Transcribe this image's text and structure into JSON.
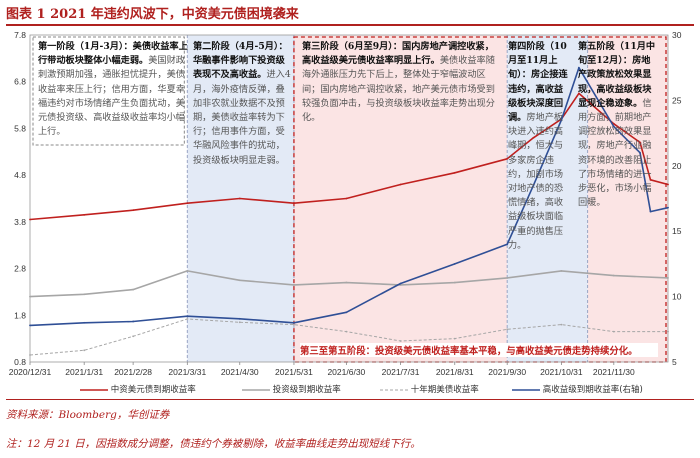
{
  "figure": {
    "title": "图表 1   2021 年违约风波下，中资美元债困境袭来",
    "source": "资料来源：Bloomberg，华创证券",
    "note": "注：12 月 21 日，因指数成分调整，债违约个券被剔除，收益率曲线走势出现短线下行。"
  },
  "annotations": {
    "p1_head": "第一阶段（1月-3月）：美债收益率上行带动板块整体小幅走弱。",
    "p1_body": "美国财政刺激预期加强，通胀担忧提升，美债收益率来压上行；信用方面，华夏幸福违约对市场情绪产生负面扰动，美元债投资级、高收益级收益率均小幅上行。",
    "p2_head": "第二阶段（4月-5月）：华融事件影响下投资级表现不及高收益。",
    "p2_body": "进入4月，海外疫情反弹，叠加非农就业数据不及预期，美债收益率转为下行；信用事件方面，受华融风险事件的扰动，投资级板块明显走弱。",
    "p3_head": "第三阶段（6月至9月）：国内房地产调控收紧，高收益级美元债收益率明显上行。",
    "p3_body": "美债收益率随海外通胀压力先下后上，整体处于窄幅波动区间；国内房地产调控收紧，地产美元债市场受到较强负面冲击，与投资级板块收益率走势出现分化。",
    "p4_head": "第四阶段（10月至11月上旬）：房企接连违约，高收益级板块深度回调。",
    "p4_body": "房地产板块进入违约高峰期，恒大与多家房企违约，加剧市场对地产债的恐慌情绪，高收益级板块面临严重的抛售压力。",
    "p5_head": "第五阶段（11月中旬至12月）：房地产政策放松效果显现，高收益级板块显现企稳迹象。",
    "p5_body": "信用方面，前期地产调控放松的效果显现，房地产行业融资环境的改善阻止了市场情绪的进一步恶化，市场小幅回暖。",
    "bottom": "第三至第五阶段：投资级美元债收益率基本平稳，与高收益美元债走势持续分化。"
  },
  "legend": [
    {
      "label": "中资美元债到期收益率",
      "color": "#c0201e",
      "dash": "solid"
    },
    {
      "label": "投资级到期收益率",
      "color": "#a6a6a6",
      "dash": "solid"
    },
    {
      "label": "十年期美债收益率",
      "color": "#a6a6a6",
      "dash": "dashed"
    },
    {
      "label": "高收益级到期收益率(右轴)",
      "color": "#2f4f96",
      "dash": "solid"
    }
  ],
  "chart_data": {
    "type": "line",
    "x_start": "2020-12-31",
    "x_end": "2021-12-31",
    "xticks": [
      "2020/12/31",
      "2021/1/31",
      "2021/2/28",
      "2021/3/31",
      "2021/4/30",
      "2021/5/31",
      "2021/6/30",
      "2021/7/31",
      "2021/8/31",
      "2021/9/30",
      "2021/10/31",
      "2021/11/30"
    ],
    "ylim_left": [
      0.8,
      7.8
    ],
    "yticks_left": [
      "0.8",
      "1.8",
      "2.8",
      "3.8",
      "4.8",
      "5.8",
      "6.8",
      "7.8"
    ],
    "ylim_right": [
      5,
      30
    ],
    "yticks_right": [
      "5",
      "10",
      "15",
      "20",
      "25",
      "30"
    ],
    "phases": [
      {
        "name": "第一阶段",
        "start": "2020-12-31",
        "end": "2021-03-31",
        "color": "#ffffff"
      },
      {
        "name": "第二阶段",
        "start": "2021-03-31",
        "end": "2021-05-31",
        "color": "#e3eaf6"
      },
      {
        "name": "第三阶段",
        "start": "2021-05-31",
        "end": "2021-09-30",
        "color": "#fbe4e4"
      },
      {
        "name": "第四阶段",
        "start": "2021-09-30",
        "end": "2021-11-15",
        "color": "#e3eaf6"
      },
      {
        "name": "第五阶段",
        "start": "2021-11-15",
        "end": "2021-12-31",
        "color": "#fbe4e4"
      }
    ],
    "series": [
      {
        "name": "中资美元债到期收益率",
        "axis": "left",
        "color": "#c0201e",
        "x": [
          "2020-12-31",
          "2021-01-31",
          "2021-02-28",
          "2021-03-31",
          "2021-04-30",
          "2021-05-31",
          "2021-06-30",
          "2021-07-31",
          "2021-08-31",
          "2021-09-30",
          "2021-10-15",
          "2021-10-31",
          "2021-11-10",
          "2021-11-30",
          "2021-12-15",
          "2021-12-21",
          "2021-12-31"
        ],
        "values": [
          3.85,
          3.95,
          4.05,
          4.2,
          4.3,
          4.2,
          4.3,
          4.6,
          4.85,
          5.15,
          5.6,
          6.0,
          6.55,
          5.9,
          5.5,
          4.7,
          4.6
        ]
      },
      {
        "name": "投资级到期收益率",
        "axis": "left",
        "color": "#a6a6a6",
        "x": [
          "2020-12-31",
          "2021-01-31",
          "2021-02-28",
          "2021-03-31",
          "2021-04-30",
          "2021-05-31",
          "2021-06-30",
          "2021-07-31",
          "2021-08-31",
          "2021-09-30",
          "2021-10-31",
          "2021-11-30",
          "2021-12-31"
        ],
        "values": [
          2.2,
          2.25,
          2.35,
          2.75,
          2.55,
          2.45,
          2.5,
          2.45,
          2.5,
          2.6,
          2.75,
          2.65,
          2.6
        ]
      },
      {
        "name": "十年期美债收益率",
        "axis": "left",
        "color": "#a6a6a6",
        "dash": true,
        "x": [
          "2020-12-31",
          "2021-01-31",
          "2021-02-28",
          "2021-03-31",
          "2021-04-30",
          "2021-05-31",
          "2021-06-30",
          "2021-07-31",
          "2021-08-31",
          "2021-09-30",
          "2021-10-31",
          "2021-11-30",
          "2021-12-31"
        ],
        "values": [
          0.95,
          1.05,
          1.35,
          1.72,
          1.65,
          1.6,
          1.45,
          1.25,
          1.3,
          1.5,
          1.6,
          1.45,
          1.45
        ]
      },
      {
        "name": "高收益级到期收益率(右轴)",
        "axis": "right",
        "color": "#2f4f96",
        "x": [
          "2020-12-31",
          "2021-01-31",
          "2021-02-28",
          "2021-03-31",
          "2021-04-30",
          "2021-05-31",
          "2021-06-30",
          "2021-07-31",
          "2021-08-31",
          "2021-09-30",
          "2021-10-15",
          "2021-10-31",
          "2021-11-10",
          "2021-11-30",
          "2021-12-15",
          "2021-12-21",
          "2021-12-31"
        ],
        "values": [
          7.8,
          8.0,
          8.1,
          8.5,
          8.3,
          8.0,
          8.8,
          11.0,
          12.5,
          14.0,
          18.5,
          23.5,
          27.5,
          23.0,
          21.0,
          16.5,
          16.8
        ]
      }
    ]
  }
}
